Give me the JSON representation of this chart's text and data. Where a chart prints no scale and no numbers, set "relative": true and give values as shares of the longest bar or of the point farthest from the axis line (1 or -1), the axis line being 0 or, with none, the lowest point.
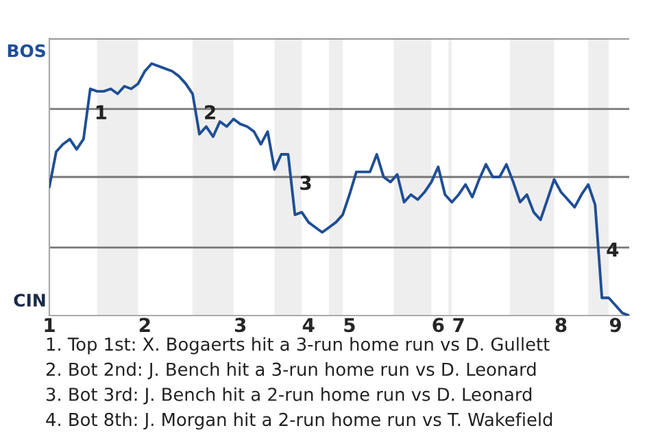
{
  "chart_data": {
    "type": "line",
    "relative": true,
    "categories": [
      "1",
      null,
      null,
      null,
      null,
      null,
      null,
      null,
      null,
      null,
      null,
      null,
      null,
      null,
      "2",
      null,
      null,
      null,
      null,
      null,
      null,
      null,
      null,
      null,
      null,
      null,
      null,
      null,
      "3",
      null,
      null,
      null,
      null,
      null,
      null,
      null,
      null,
      null,
      "4",
      null,
      null,
      null,
      null,
      null,
      "5",
      null,
      null,
      null,
      null,
      null,
      null,
      null,
      null,
      null,
      null,
      null,
      null,
      "6",
      null,
      null,
      "7",
      null,
      null,
      null,
      null,
      null,
      null,
      null,
      null,
      null,
      null,
      null,
      null,
      null,
      null,
      "8",
      null,
      null,
      null,
      null,
      null,
      null,
      null,
      "9",
      null,
      null
    ],
    "series": [
      {
        "color": "#1f4e96",
        "values": [
          0.51,
          0.65,
          0.68,
          0.7,
          0.66,
          0.7,
          0.9,
          0.89,
          0.89,
          0.9,
          0.88,
          0.91,
          0.9,
          0.92,
          0.97,
          1,
          0.99,
          0.98,
          0.97,
          0.95,
          0.92,
          0.88,
          0.72,
          0.75,
          0.71,
          0.77,
          0.75,
          0.78,
          0.76,
          0.75,
          0.73,
          0.68,
          0.73,
          0.58,
          0.64,
          0.64,
          0.4,
          0.41,
          0.37,
          0.35,
          0.33,
          0.35,
          0.37,
          0.4,
          0.48,
          0.57,
          0.57,
          0.57,
          0.64,
          0.55,
          0.53,
          0.56,
          0.45,
          0.48,
          0.46,
          0.49,
          0.53,
          0.59,
          0.48,
          0.45,
          0.48,
          0.52,
          0.47,
          0.54,
          0.6,
          0.55,
          0.55,
          0.6,
          0.53,
          0.45,
          0.48,
          0.41,
          0.38,
          0.46,
          0.54,
          0.49,
          0.46,
          0.43,
          0.48,
          0.52,
          0.44,
          0.07,
          0.07,
          0.04,
          0.01,
          0
        ]
      }
    ],
    "ref_lines": [
      {
        "axis": "y",
        "value": 0.27,
        "color": "#777777"
      },
      {
        "axis": "y",
        "value": 0.55,
        "color": "#777777"
      },
      {
        "axis": "y",
        "value": 0.82,
        "color": "#777777"
      },
      {
        "axis": "y",
        "value": 1.1,
        "color": "#777777"
      }
    ],
    "annotations": [
      "BOS",
      "CIN",
      "1",
      "2",
      "3",
      "4",
      "1. Top 1st: X. Bogaerts hit a 3-run home run vs D. Gullett",
      "2. Bot 2nd: J. Bench hit a 3-run home run vs D. Leonard",
      "3. Bot 3rd: J. Bench hit a 2-run home run vs D. Leonard",
      "4. Bot 8th: J. Morgan hit a 2-run home run vs T. Wakefield"
    ],
    "legend": false
  }
}
